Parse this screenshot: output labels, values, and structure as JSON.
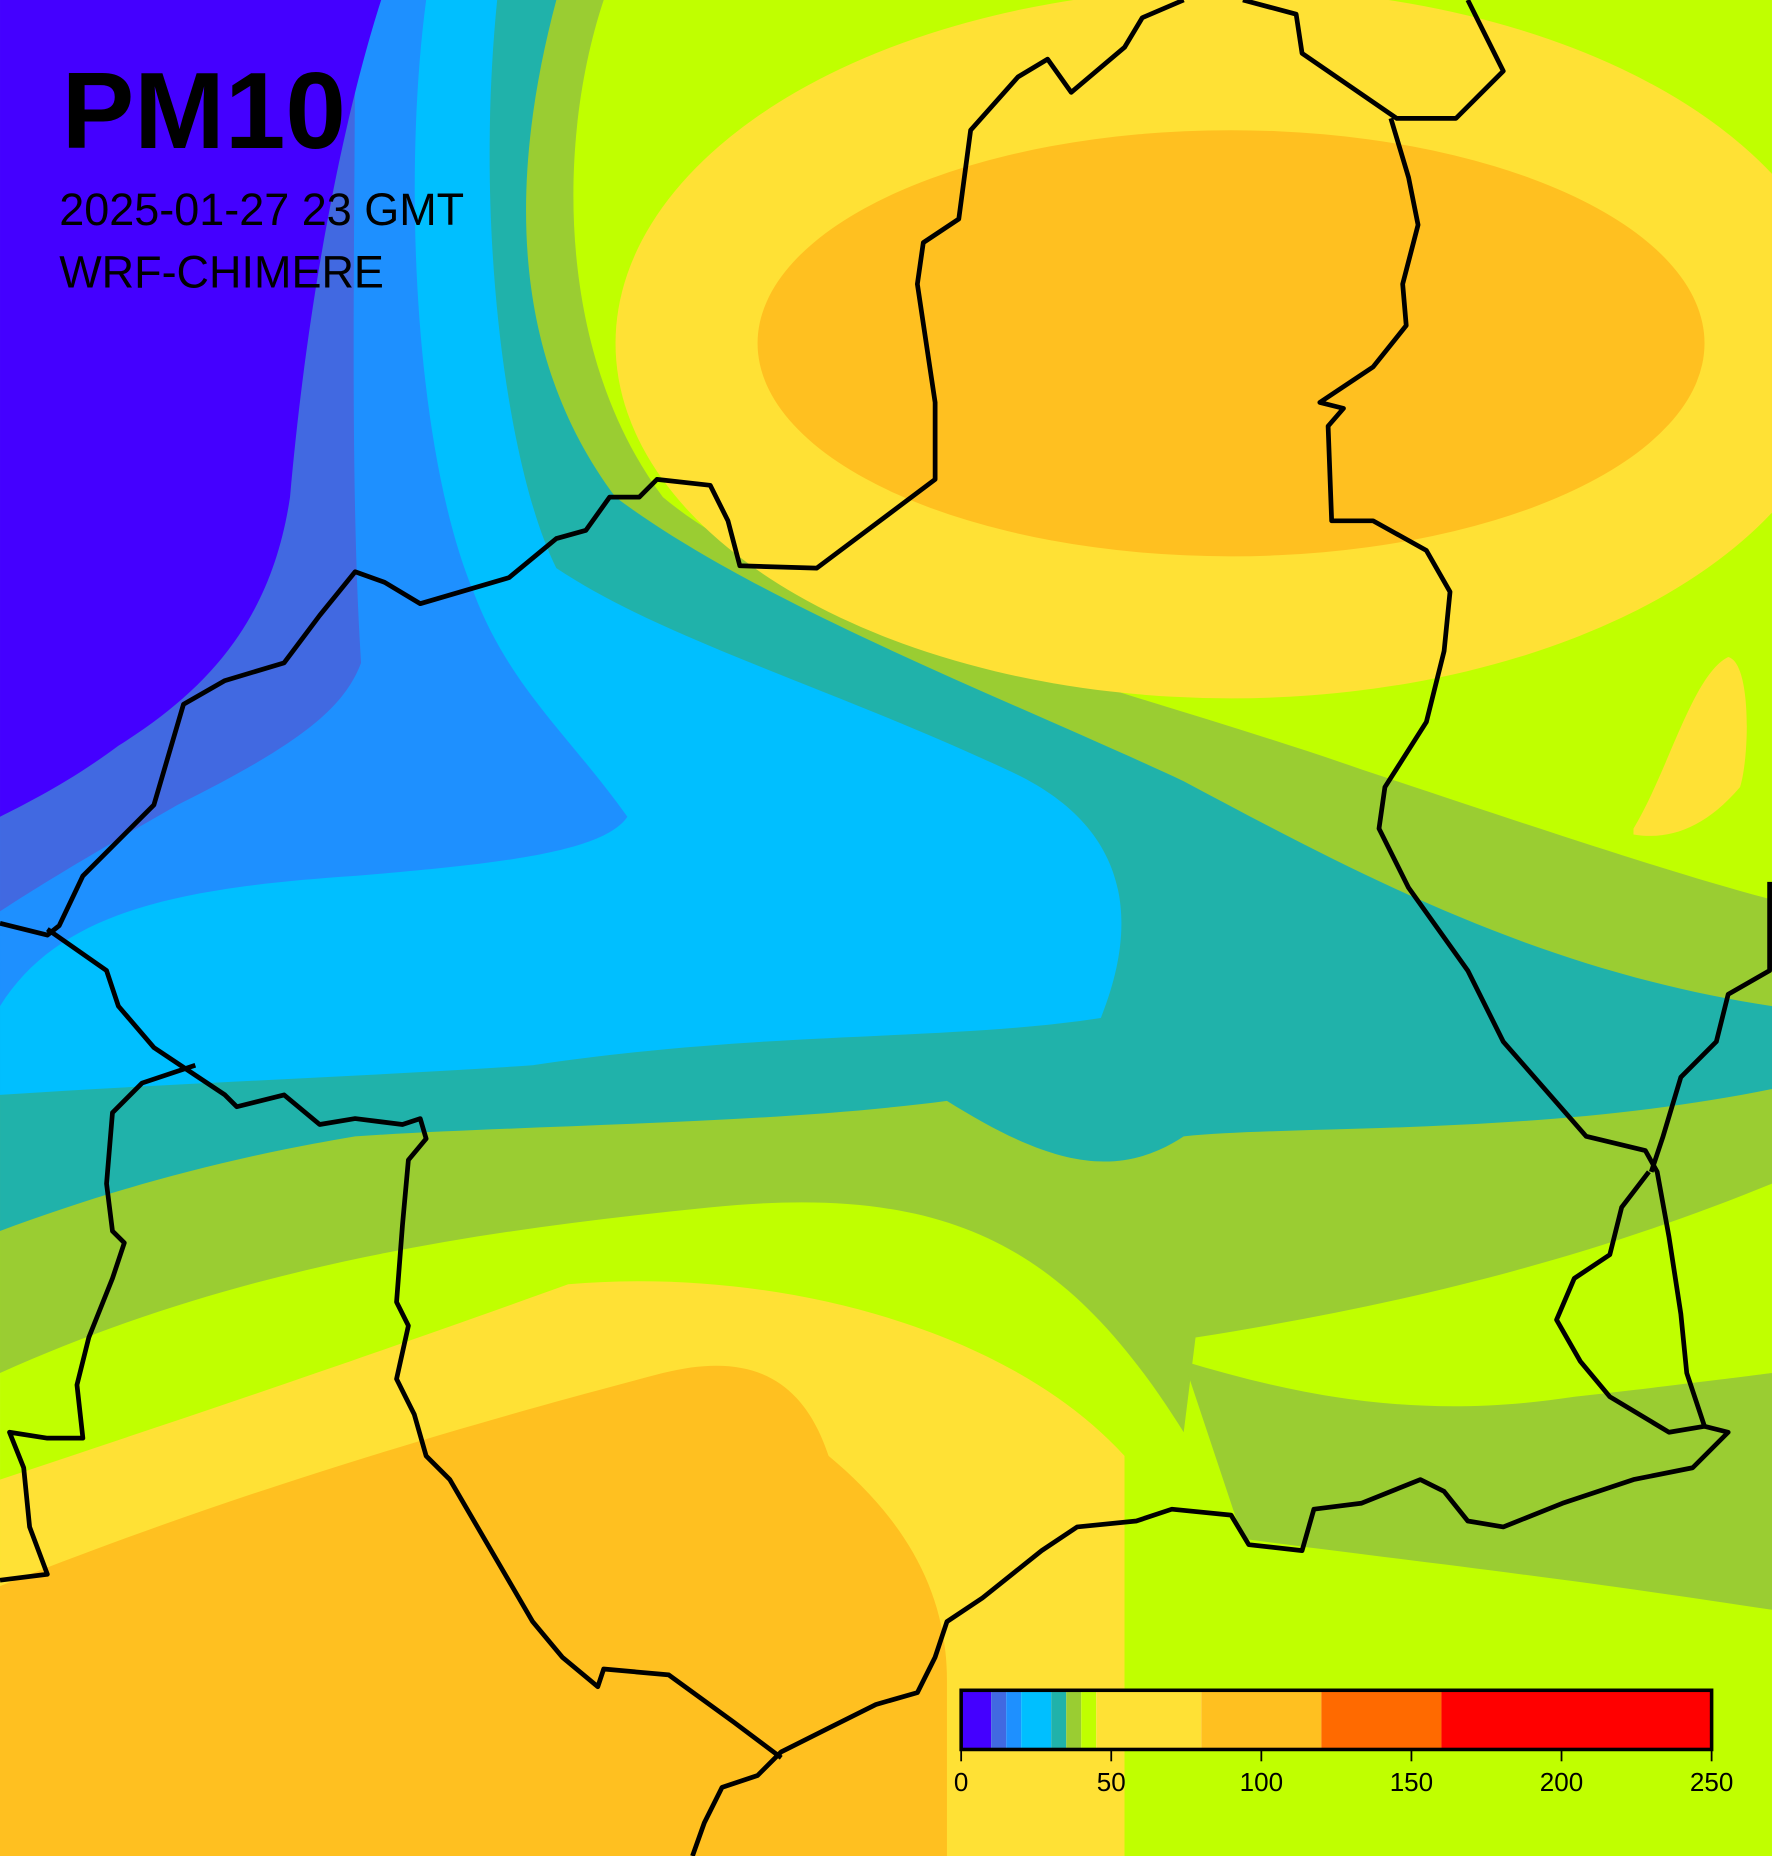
{
  "title": "PM10",
  "subtitle": "2025-01-27 23 GMT",
  "model": "WRF-CHIMERE",
  "colorbar": {
    "lim": [
      0,
      250
    ],
    "ticks": [
      0,
      50,
      100,
      150,
      200,
      250
    ],
    "bounds": [
      0,
      10,
      15,
      20,
      30,
      35,
      40,
      45,
      80,
      120,
      160,
      250
    ],
    "colors": [
      "#4400ff",
      "#4169e1",
      "#1e90ff",
      "#00bfff",
      "#20b2aa",
      "#9acd32",
      "#c0ff00",
      "#ffe135",
      "#ffc020",
      "#ff6a00",
      "#ff0000"
    ]
  }
}
